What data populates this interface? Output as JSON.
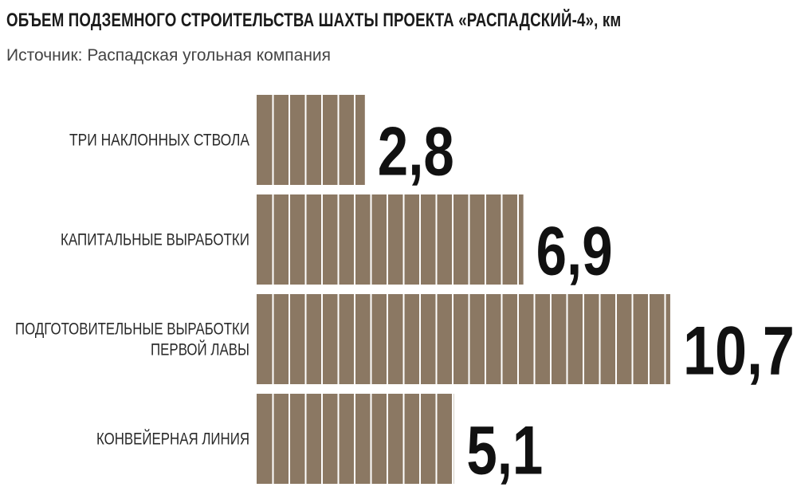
{
  "title": "ОБЪЕМ ПОДЗЕМНОГО СТРОИТЕЛЬСТВА  ШАХТЫ ПРОЕКТА «РАСПАДСКИЙ-4», км",
  "source": "Источник: Распадская угольная компания",
  "chart_data": {
    "type": "bar",
    "orientation": "horizontal",
    "categories": [
      [
        "ТРИ НАКЛОННЫХ СТВОЛА"
      ],
      [
        "КАПИТАЛЬНЫЕ ВЫРАБОТКИ"
      ],
      [
        "ПОДГОТОВИТЕЛЬНЫЕ ВЫРАБОТКИ",
        "ПЕРВОЙ ЛАВЫ"
      ],
      [
        "КОНВЕЙЕРНАЯ ЛИНИЯ"
      ]
    ],
    "values": [
      2.8,
      6.9,
      10.7,
      5.1
    ],
    "value_labels": [
      "2,8",
      "6,9",
      "10,7",
      "5,1"
    ],
    "title": "ОБЪЕМ ПОДЗЕМНОГО СТРОИТЕЛЬСТВА  ШАХТЫ ПРОЕКТА «РАСПАДСКИЙ-4», км",
    "xlabel": "",
    "ylabel": "",
    "grid": false,
    "bar_color": "#8b7863",
    "stripe_color": "#ffffff"
  }
}
